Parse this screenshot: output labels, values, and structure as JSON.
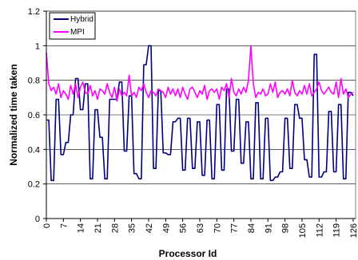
{
  "chart_data": {
    "type": "line",
    "xlabel": "Processor Id",
    "ylabel": "Normalized time taken",
    "ylim": [
      0,
      1.2
    ],
    "y_ticks": [
      "0",
      "0.2",
      "0.4",
      "0.6",
      "0.8",
      "1",
      "1.2"
    ],
    "x_tick_labels": [
      "0",
      "7",
      "14",
      "21",
      "28",
      "35",
      "42",
      "49",
      "56",
      "63",
      "70",
      "77",
      "84",
      "91",
      "98",
      "105",
      "112",
      "119",
      "126"
    ],
    "x_tick_step": 7,
    "grid": "horizontal",
    "legend_position": "top-left",
    "series": [
      {
        "name": "Hybrid",
        "color": "#000080",
        "start_x": 0,
        "values": [
          0.57,
          0.57,
          0.22,
          0.22,
          0.69,
          0.69,
          0.37,
          0.37,
          0.44,
          0.44,
          0.6,
          0.6,
          0.81,
          0.81,
          0.63,
          0.63,
          0.78,
          0.78,
          0.23,
          0.23,
          0.63,
          0.63,
          0.47,
          0.47,
          0.23,
          0.23,
          0.69,
          0.69,
          0.69,
          0.69,
          0.79,
          0.79,
          0.39,
          0.39,
          0.71,
          0.71,
          0.26,
          0.26,
          0.23,
          0.23,
          0.89,
          0.89,
          1.0,
          1.0,
          0.29,
          0.29,
          0.74,
          0.74,
          0.38,
          0.38,
          0.37,
          0.37,
          0.56,
          0.56,
          0.58,
          0.58,
          0.28,
          0.28,
          0.58,
          0.58,
          0.29,
          0.29,
          0.56,
          0.56,
          0.25,
          0.25,
          0.57,
          0.57,
          0.23,
          0.23,
          0.66,
          0.66,
          0.28,
          0.28,
          0.75,
          0.75,
          0.39,
          0.39,
          0.69,
          0.69,
          0.32,
          0.32,
          0.56,
          0.56,
          0.23,
          0.23,
          0.67,
          0.67,
          0.23,
          0.23,
          0.58,
          0.58,
          0.22,
          0.22,
          0.24,
          0.24,
          0.27,
          0.27,
          0.58,
          0.58,
          0.29,
          0.29,
          0.66,
          0.66,
          0.58,
          0.58,
          0.34,
          0.34,
          0.24,
          0.24,
          0.95,
          0.95,
          0.24,
          0.24,
          0.27,
          0.27,
          0.62,
          0.62,
          0.27,
          0.27,
          0.66,
          0.66,
          0.23,
          0.23,
          0.73,
          0.73,
          0.71
        ]
      },
      {
        "name": "MPI",
        "color": "#ff00ff",
        "start_x": 0,
        "values": [
          0.96,
          0.78,
          0.74,
          0.76,
          0.72,
          0.78,
          0.7,
          0.74,
          0.72,
          0.69,
          0.77,
          0.72,
          0.78,
          0.7,
          0.76,
          0.79,
          0.73,
          0.72,
          0.77,
          0.71,
          0.74,
          0.69,
          0.75,
          0.74,
          0.72,
          0.78,
          0.73,
          0.7,
          0.76,
          0.68,
          0.75,
          0.71,
          0.73,
          0.71,
          0.83,
          0.71,
          0.73,
          0.7,
          0.76,
          0.74,
          0.78,
          0.73,
          0.7,
          0.74,
          0.73,
          0.71,
          0.75,
          0.74,
          0.73,
          0.7,
          0.76,
          0.72,
          0.75,
          0.71,
          0.75,
          0.7,
          0.76,
          0.72,
          0.69,
          0.75,
          0.76,
          0.73,
          0.7,
          0.74,
          0.72,
          0.77,
          0.69,
          0.74,
          0.75,
          0.73,
          0.75,
          0.69,
          0.76,
          0.74,
          0.78,
          0.7,
          0.81,
          0.73,
          0.71,
          0.75,
          0.72,
          0.76,
          0.73,
          0.8,
          1.0,
          0.78,
          0.7,
          0.73,
          0.72,
          0.75,
          0.71,
          0.72,
          0.78,
          0.73,
          0.79,
          0.7,
          0.73,
          0.74,
          0.72,
          0.75,
          0.71,
          0.8,
          0.73,
          0.71,
          0.74,
          0.72,
          0.77,
          0.72,
          0.78,
          0.71,
          0.73,
          0.75,
          0.79,
          0.74,
          0.72,
          0.74,
          0.76,
          0.73,
          0.72,
          0.79,
          0.7,
          0.81,
          0.72,
          0.75,
          0.7,
          0.72,
          0.73
        ]
      }
    ]
  }
}
